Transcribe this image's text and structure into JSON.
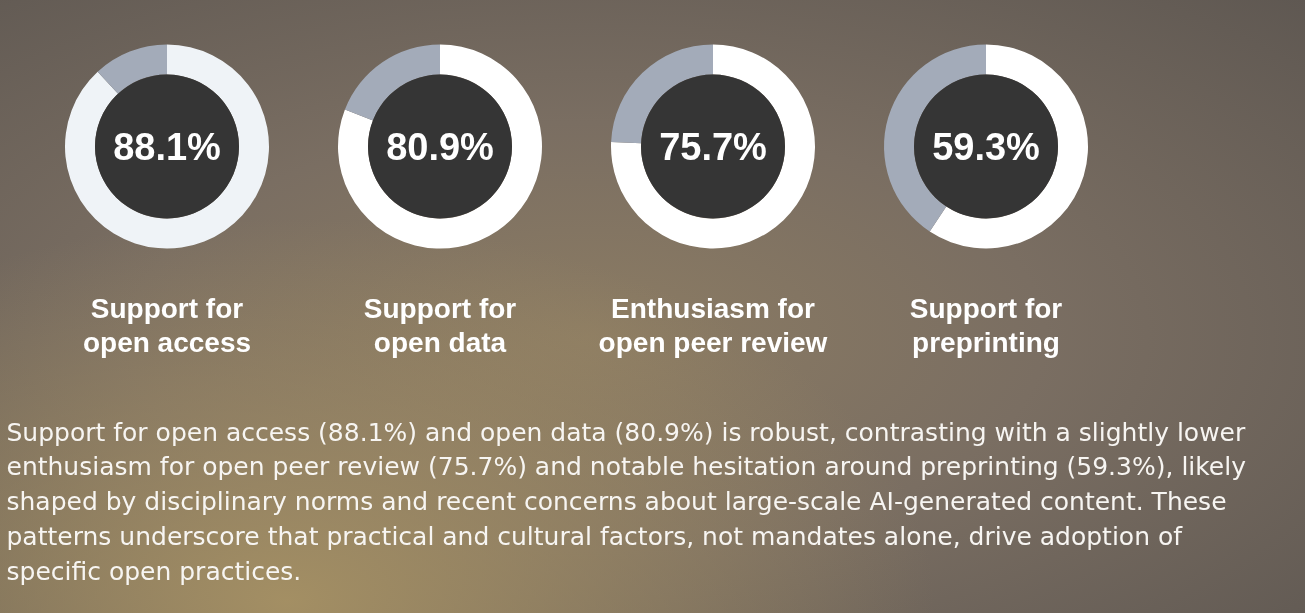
{
  "chart_data": [
    {
      "type": "donut",
      "title": "Support for open access",
      "categories": [
        null,
        null
      ],
      "values": [
        88.1,
        11.9
      ],
      "colors": [
        "#eff3f7",
        "#a3abb9"
      ],
      "value_labels": [
        "88.1%",
        null
      ]
    },
    {
      "type": "donut",
      "title": "Support for open data",
      "categories": [
        null,
        null
      ],
      "values": [
        80.9,
        19.1
      ],
      "colors": [
        "#ffffff",
        "#a3abb9"
      ],
      "value_labels": [
        "80.9%",
        null
      ]
    },
    {
      "type": "donut",
      "title": "Enthusiasm for open peer review",
      "categories": [
        null,
        null
      ],
      "values": [
        75.7,
        24.3
      ],
      "colors": [
        "#ffffff",
        "#a3abb9"
      ],
      "value_labels": [
        "75.7%",
        null
      ]
    },
    {
      "type": "donut",
      "title": "Support for preprinting",
      "categories": [
        null,
        null
      ],
      "values": [
        59.3,
        40.7
      ],
      "colors": [
        "#ffffff",
        "#a3abb9"
      ],
      "value_labels": [
        "59.3%",
        null
      ]
    },
    {
      "type": "other",
      "annotations": [
        "Support for open access (88.1%) and open data (80.9%) is robust, contrasting with a slightly lower enthusiasm for open peer review (75.7%) and notable hesitation around preprinting (59.3%), likely shaped by disciplinary norms and recent concerns about large-scale AI-generated content. These patterns underscore that practical and cultural factors, not mandates alone, drive adoption of specific open practices."
      ]
    }
  ]
}
